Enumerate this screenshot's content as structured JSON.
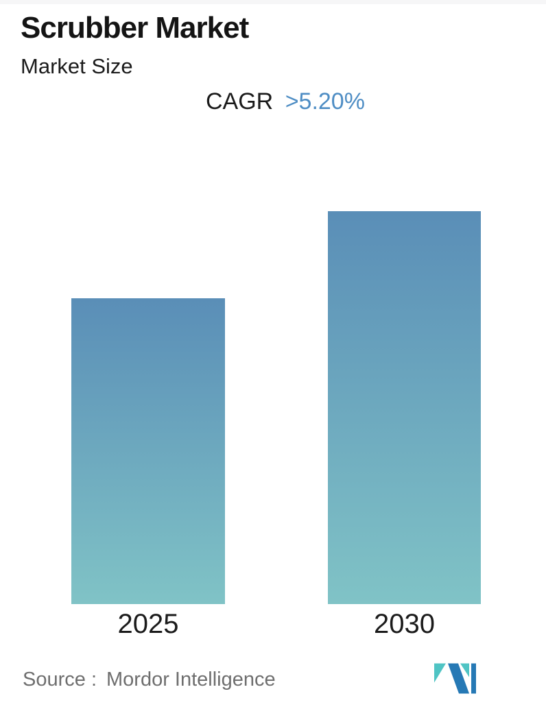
{
  "page": {
    "background": "#ffffff",
    "top_strip_color": "#f6f6f7"
  },
  "header": {
    "title": "Scrubber Market",
    "subtitle": "Market Size"
  },
  "cagr": {
    "label": "CAGR",
    "value": ">5.20%",
    "value_color": "#4e8dc4"
  },
  "chart_data": {
    "type": "bar",
    "title": "Scrubber Market",
    "subtitle": "Market Size",
    "annotation": "CAGR >5.20%",
    "categories": [
      "2025",
      "2030"
    ],
    "values": [
      1.0,
      1.285
    ],
    "value_unit": "relative bar height (no numeric axis, gridlines or data labels shown)",
    "ylim": [
      0,
      1.285
    ],
    "grid": false,
    "legend": false,
    "bar_gradient_top": "#5a8eb7",
    "bar_gradient_bottom": "#80c3c6"
  },
  "footer": {
    "source_prefix": "Source :",
    "source_name": "Mordor Intelligence",
    "logo": {
      "icon": "mordor-intelligence-logo",
      "teal": "#4fc4c4",
      "blue": "#2679b5"
    }
  }
}
